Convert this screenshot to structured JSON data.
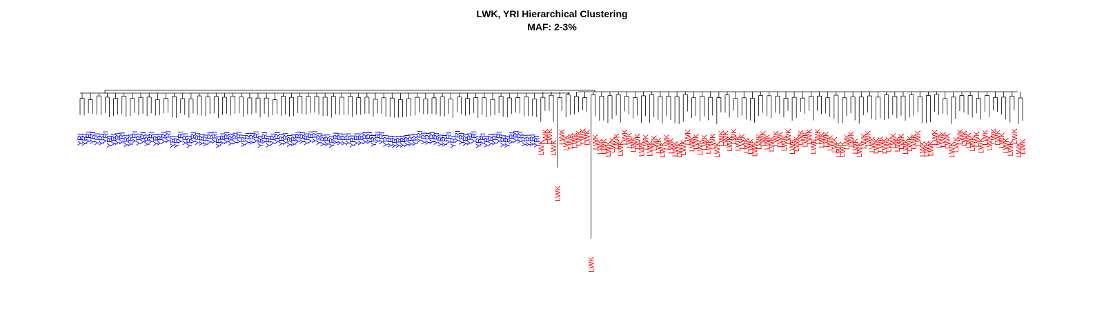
{
  "chart_data": {
    "type": "dendrogram",
    "title": "LWK, YRI Hierarchical Clustering",
    "subtitle": "MAF: 2-3%",
    "leaf_groups": [
      {
        "name": "YRI",
        "count": 110,
        "color": "#0000ff"
      },
      {
        "name": "LWK",
        "count": 116,
        "color": "#ff0000"
      }
    ],
    "outlier_leaves": [
      "LWK",
      "LWK"
    ],
    "xlabel": "",
    "ylabel": ""
  }
}
